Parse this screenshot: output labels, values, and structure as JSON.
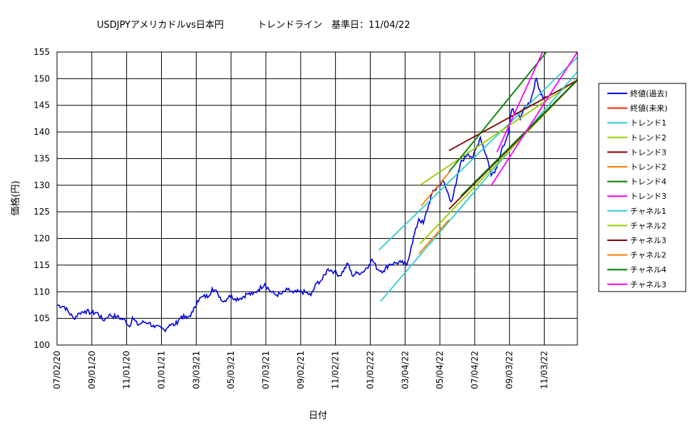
{
  "chart_data": {
    "type": "line",
    "title_main": "USDJPYアメリカドルvs日本円",
    "title_sub": "トレンドライン　基準日：11/04/22",
    "xlabel": "日付",
    "ylabel": "価格(円)",
    "ylim": [
      100,
      155
    ],
    "yticks": [
      100,
      105,
      110,
      115,
      120,
      125,
      130,
      135,
      140,
      145,
      150,
      155
    ],
    "xlim": [
      "2020-07-02",
      "2022-12-31"
    ],
    "xticks": [
      {
        "date": "2020-07-02",
        "label": "07/02/20"
      },
      {
        "date": "2020-09-01",
        "label": "09/01/20"
      },
      {
        "date": "2020-11-01",
        "label": "11/01/20"
      },
      {
        "date": "2021-01-01",
        "label": "01/01/21"
      },
      {
        "date": "2021-03-03",
        "label": "03/03/21"
      },
      {
        "date": "2021-05-03",
        "label": "05/03/21"
      },
      {
        "date": "2021-07-03",
        "label": "07/03/21"
      },
      {
        "date": "2021-09-02",
        "label": "09/02/21"
      },
      {
        "date": "2021-11-02",
        "label": "11/02/21"
      },
      {
        "date": "2022-01-02",
        "label": "01/02/22"
      },
      {
        "date": "2022-03-04",
        "label": "03/04/22"
      },
      {
        "date": "2022-05-04",
        "label": "05/04/22"
      },
      {
        "date": "2022-07-04",
        "label": "07/04/22"
      },
      {
        "date": "2022-09-03",
        "label": "09/03/22"
      },
      {
        "date": "2022-11-03",
        "label": "11/03/22"
      }
    ],
    "grid": true,
    "legend_position": "right",
    "series": [
      {
        "name": "終値(過去)",
        "color": "#0000dd",
        "style": "price",
        "points": [
          [
            "2020-07-02",
            107.5
          ],
          [
            "2020-07-15",
            107.2
          ],
          [
            "2020-07-31",
            105.0
          ],
          [
            "2020-08-10",
            106.0
          ],
          [
            "2020-08-20",
            106.4
          ],
          [
            "2020-09-01",
            106.0
          ],
          [
            "2020-09-10",
            106.1
          ],
          [
            "2020-09-21",
            104.6
          ],
          [
            "2020-10-01",
            105.6
          ],
          [
            "2020-10-15",
            105.3
          ],
          [
            "2020-10-30",
            104.6
          ],
          [
            "2020-11-06",
            103.4
          ],
          [
            "2020-11-11",
            105.2
          ],
          [
            "2020-11-20",
            103.8
          ],
          [
            "2020-12-01",
            104.3
          ],
          [
            "2020-12-10",
            104.2
          ],
          [
            "2020-12-20",
            103.3
          ],
          [
            "2021-01-01",
            103.2
          ],
          [
            "2021-01-06",
            102.8
          ],
          [
            "2021-01-15",
            103.8
          ],
          [
            "2021-01-25",
            103.8
          ],
          [
            "2021-02-05",
            105.4
          ],
          [
            "2021-02-15",
            105.0
          ],
          [
            "2021-02-25",
            106.2
          ],
          [
            "2021-03-05",
            108.3
          ],
          [
            "2021-03-15",
            109.1
          ],
          [
            "2021-03-25",
            109.2
          ],
          [
            "2021-03-31",
            110.7
          ],
          [
            "2021-04-10",
            109.6
          ],
          [
            "2021-04-20",
            108.1
          ],
          [
            "2021-04-30",
            109.3
          ],
          [
            "2021-05-10",
            108.7
          ],
          [
            "2021-05-20",
            108.8
          ],
          [
            "2021-05-31",
            109.6
          ],
          [
            "2021-06-10",
            109.5
          ],
          [
            "2021-06-20",
            110.4
          ],
          [
            "2021-07-01",
            111.5
          ],
          [
            "2021-07-10",
            110.2
          ],
          [
            "2021-07-20",
            109.4
          ],
          [
            "2021-07-31",
            109.6
          ],
          [
            "2021-08-10",
            110.4
          ],
          [
            "2021-08-20",
            109.8
          ],
          [
            "2021-08-31",
            110.0
          ],
          [
            "2021-09-10",
            109.9
          ],
          [
            "2021-09-20",
            109.3
          ],
          [
            "2021-09-30",
            111.6
          ],
          [
            "2021-10-10",
            112.3
          ],
          [
            "2021-10-20",
            114.3
          ],
          [
            "2021-10-31",
            113.8
          ],
          [
            "2021-11-10",
            113.0
          ],
          [
            "2021-11-24",
            115.3
          ],
          [
            "2021-12-01",
            113.1
          ],
          [
            "2021-12-10",
            113.5
          ],
          [
            "2021-12-20",
            113.7
          ],
          [
            "2021-12-31",
            115.1
          ],
          [
            "2022-01-05",
            116.1
          ],
          [
            "2022-01-15",
            114.2
          ],
          [
            "2022-01-25",
            113.9
          ],
          [
            "2022-02-05",
            115.2
          ],
          [
            "2022-02-15",
            115.4
          ],
          [
            "2022-02-25",
            115.5
          ],
          [
            "2022-03-07",
            115.0
          ],
          [
            "2022-03-15",
            118.6
          ],
          [
            "2022-03-28",
            123.7
          ],
          [
            "2022-04-05",
            122.8
          ],
          [
            "2022-04-20",
            128.4
          ],
          [
            "2022-05-01",
            129.8
          ],
          [
            "2022-05-09",
            130.9
          ],
          [
            "2022-05-24",
            126.9
          ],
          [
            "2022-06-01",
            130.0
          ],
          [
            "2022-06-09",
            134.1
          ],
          [
            "2022-06-22",
            136.0
          ],
          [
            "2022-07-01",
            135.2
          ],
          [
            "2022-07-14",
            139.0
          ],
          [
            "2022-07-28",
            134.3
          ],
          [
            "2022-08-02",
            131.8
          ],
          [
            "2022-08-10",
            133.0
          ],
          [
            "2022-08-20",
            136.7
          ],
          [
            "2022-09-01",
            139.7
          ],
          [
            "2022-09-07",
            144.2
          ],
          [
            "2022-09-15",
            143.5
          ],
          [
            "2022-09-22",
            142.4
          ],
          [
            "2022-09-30",
            144.7
          ],
          [
            "2022-10-10",
            145.8
          ],
          [
            "2022-10-20",
            150.0
          ],
          [
            "2022-10-28",
            147.0
          ],
          [
            "2022-11-04",
            146.6
          ]
        ]
      },
      {
        "name": "終値(未来)",
        "color": "#ff2200",
        "style": "line",
        "points": [
          [
            "2022-11-04",
            146.6
          ],
          [
            "2022-11-10",
            146.6
          ]
        ]
      },
      {
        "name": "トレンド1",
        "color": "#33cccc",
        "style": "line",
        "points": [
          [
            "2022-01-17",
            117.8
          ],
          [
            "2022-12-31",
            154.0
          ]
        ]
      },
      {
        "name": "トレンド2",
        "color": "#99cc00",
        "style": "line",
        "points": [
          [
            "2022-03-30",
            130.0
          ],
          [
            "2022-12-31",
            149.8
          ]
        ]
      },
      {
        "name": "トレンド3",
        "color": "#800000",
        "style": "line",
        "points": [
          [
            "2022-05-20",
            136.5
          ],
          [
            "2022-12-31",
            149.7
          ]
        ]
      },
      {
        "name": "トレンド2",
        "color": "#ff7f00",
        "style": "line",
        "points": [
          [
            "2022-04-01",
            126.1
          ],
          [
            "2022-05-21",
            132.5
          ]
        ]
      },
      {
        "name": "トレンド4",
        "color": "#008000",
        "style": "line",
        "points": [
          [
            "2022-05-20",
            132.5
          ],
          [
            "2022-11-06",
            154.9
          ]
        ]
      },
      {
        "name": "トレンド3",
        "color": "#ff00ff",
        "style": "line",
        "points": [
          [
            "2022-08-12",
            136.2
          ],
          [
            "2022-10-31",
            155.0
          ]
        ]
      },
      {
        "name": "チャネル1",
        "color": "#33cccc",
        "style": "line",
        "points": [
          [
            "2022-01-20",
            108.2
          ],
          [
            "2022-12-31",
            151.3
          ]
        ]
      },
      {
        "name": "チャネル2",
        "color": "#99cc00",
        "style": "line",
        "points": [
          [
            "2022-03-30",
            119.0
          ],
          [
            "2022-12-31",
            149.8
          ]
        ]
      },
      {
        "name": "チャネル3",
        "color": "#800000",
        "style": "line",
        "points": [
          [
            "2022-05-20",
            125.5
          ],
          [
            "2022-12-31",
            149.7
          ]
        ]
      },
      {
        "name": "チャネル2",
        "color": "#ff7f00",
        "style": "line",
        "points": [
          [
            "2022-03-28",
            117.1
          ],
          [
            "2022-05-20",
            123.5
          ]
        ]
      },
      {
        "name": "チャネル4",
        "color": "#008000",
        "style": "line",
        "points": [
          [
            "2022-06-10",
            128.0
          ],
          [
            "2022-12-31",
            149.8
          ]
        ]
      },
      {
        "name": "チャネル3",
        "color": "#ff00ff",
        "style": "line",
        "points": [
          [
            "2022-08-03",
            130.1
          ],
          [
            "2022-12-31",
            155.0
          ]
        ]
      }
    ]
  }
}
